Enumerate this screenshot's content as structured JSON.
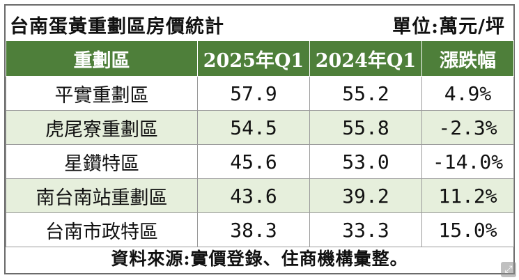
{
  "title": "台南蛋黃重劃區房價統計",
  "unit": "單位:萬元/坪",
  "table": {
    "headers": [
      "重劃區",
      "2025年Q1",
      "2024年Q1",
      "漲跌幅"
    ],
    "rows": [
      [
        "平實重劃區",
        "57.9",
        "55.2",
        "4.9%"
      ],
      [
        "虎尾寮重劃區",
        "54.5",
        "55.8",
        "-2.3%"
      ],
      [
        "星鑽特區",
        "45.6",
        "53.0",
        "-14.0%"
      ],
      [
        "南台南站重劃區",
        "43.6",
        "39.2",
        "11.2%"
      ],
      [
        "台南市政特區",
        "38.3",
        "33.3",
        "15.0%"
      ]
    ]
  },
  "source": "資料來源:實價登錄、住商機構彙整。",
  "colors": {
    "header_bg": "#4e7f3a",
    "alt_row_bg": "#e6efdc",
    "border": "#6b6b6b"
  },
  "icons": {
    "expand": "expand-icon"
  }
}
